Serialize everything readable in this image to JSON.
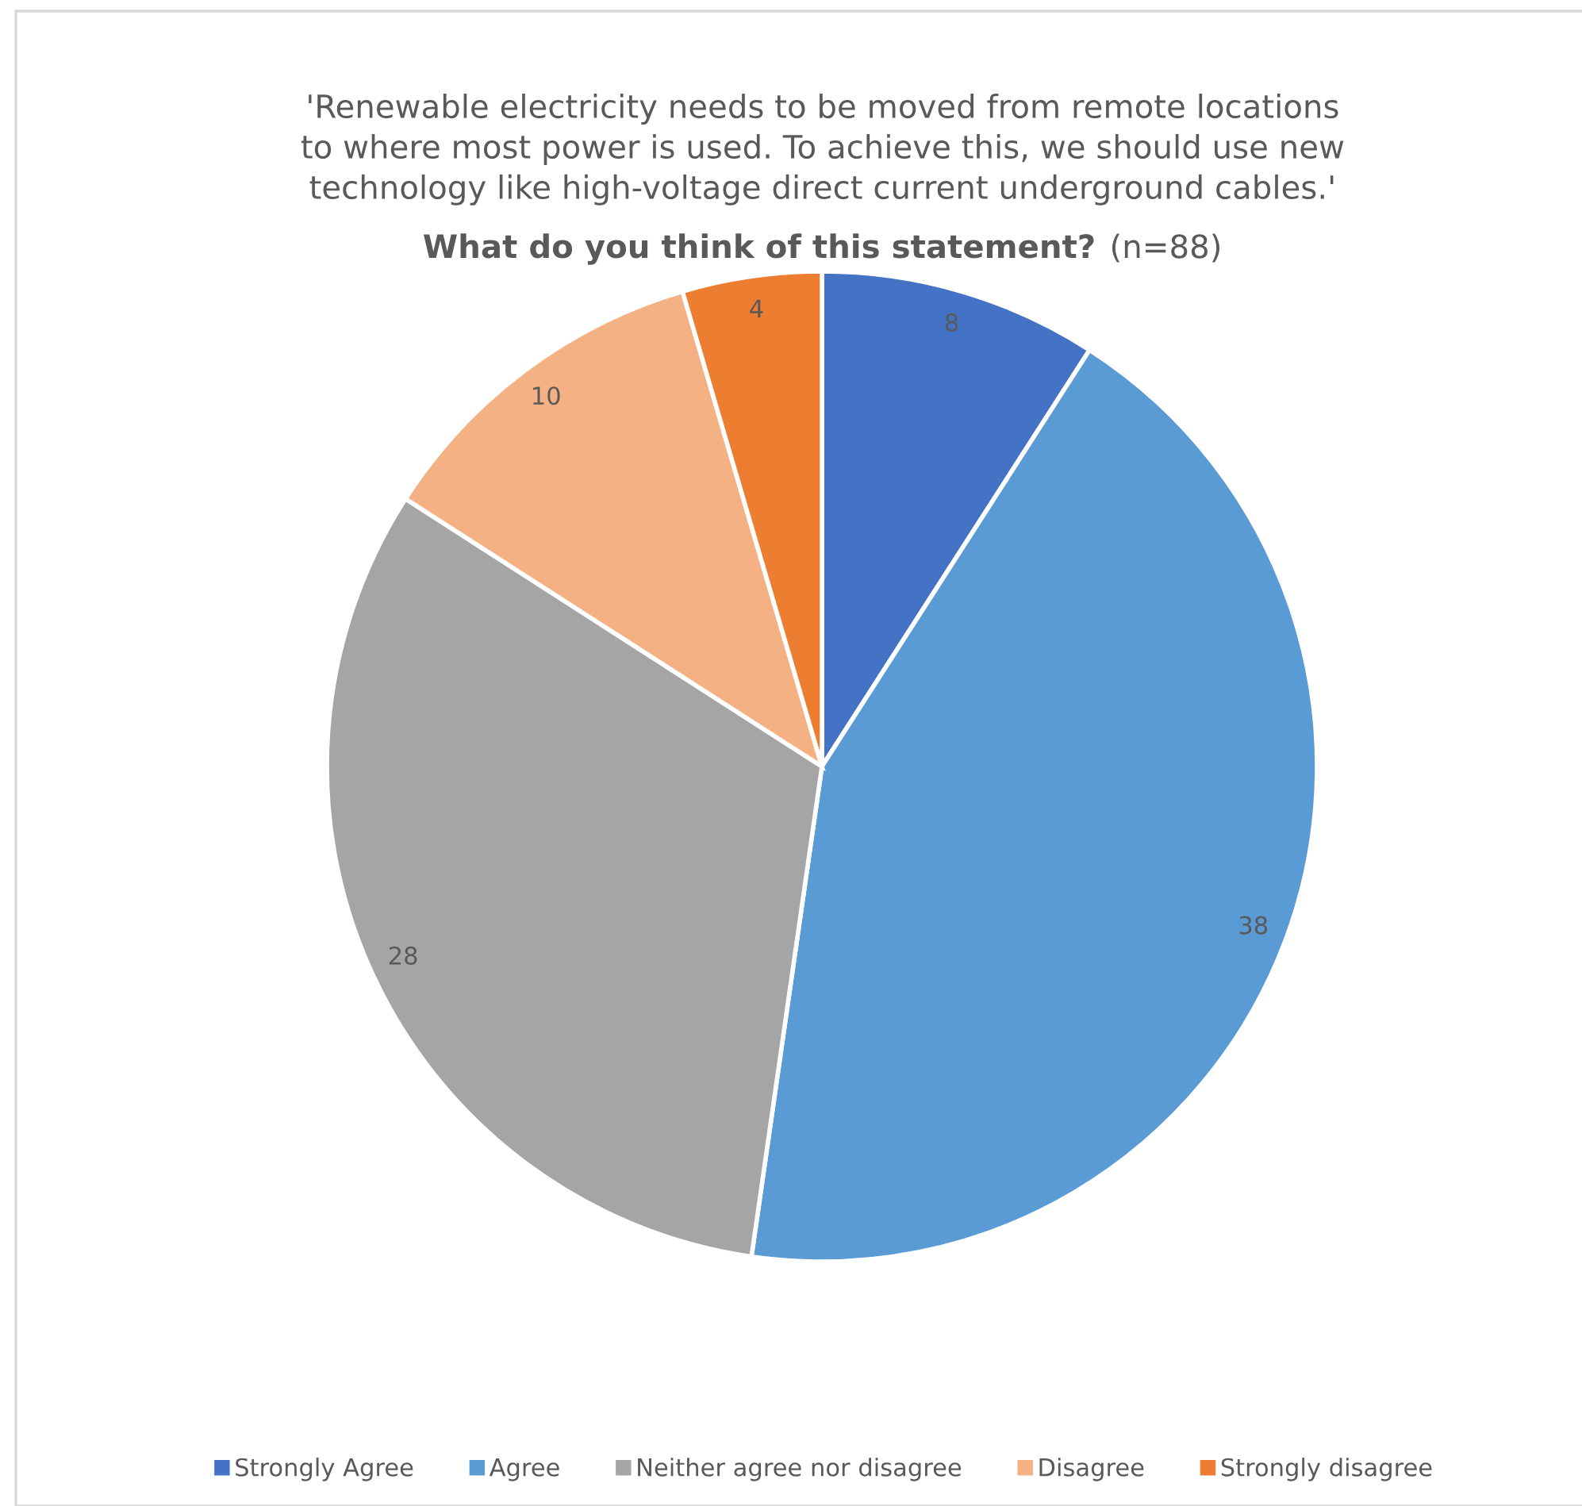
{
  "chart_data": {
    "type": "pie",
    "title": "'Renewable electricity needs to be moved from remote locations\nto where most power is used. To achieve this, we should use new\ntechnology like high-voltage direct current underground cables.'",
    "subtitle": "What do you think of this statement?",
    "annotations": [
      "(n=88)"
    ],
    "categories": [
      "Strongly Agree",
      "Agree",
      "Neither agree nor disagree",
      "Disagree",
      "Strongly disagree"
    ],
    "values": [
      8,
      38,
      28,
      10,
      4
    ],
    "colors": [
      "#4472c4",
      "#5b9bd5",
      "#a5a5a5",
      "#f4b183",
      "#ed7d31"
    ],
    "data_labels": true,
    "legend": "bottom"
  }
}
